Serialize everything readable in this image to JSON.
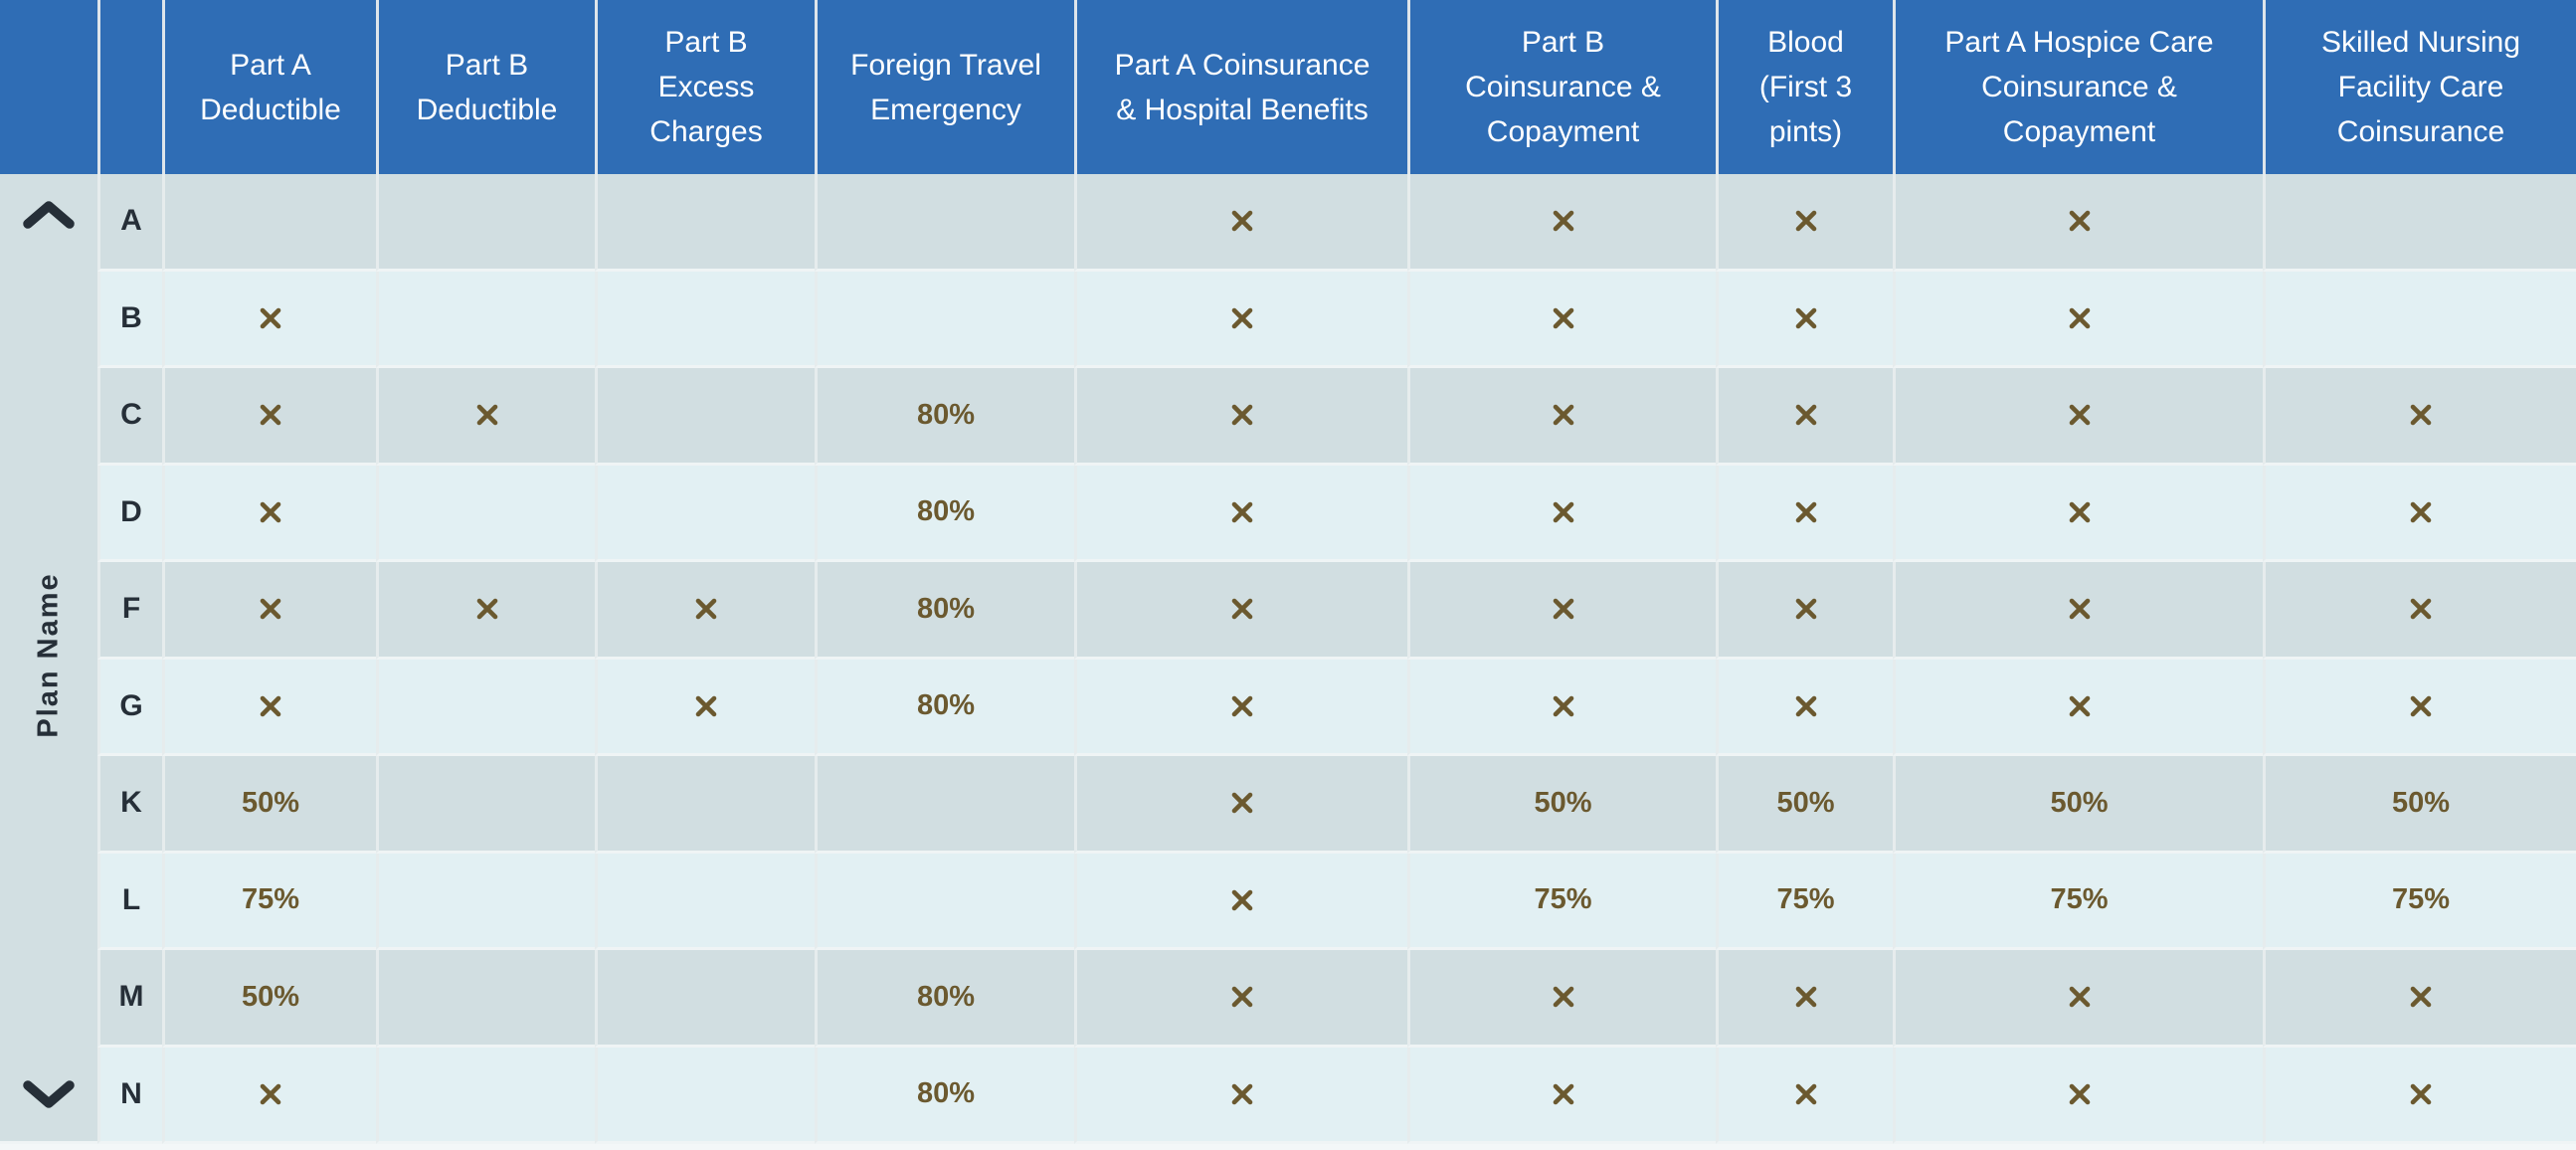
{
  "table": {
    "sidebar": {
      "label": "Plan Name",
      "up_icon": "chevron-up-icon",
      "down_icon": "chevron-down-icon"
    },
    "corner_cells": [
      "",
      ""
    ],
    "columns": [
      "Part A\nDeductible",
      "Part B\nDeductible",
      "Part B\nExcess\nCharges",
      "Foreign Travel\nEmergency",
      "Part A Coinsurance\n& Hospital Benefits",
      "Part B\nCoinsurance &\nCopayment",
      "Blood\n(First 3\npints)",
      "Part A Hospice Care\nCoinsurance &\nCopayment",
      "Skilled Nursing\nFacility Care\nCoinsurance"
    ],
    "mark_icon": "x-mark-icon",
    "rows": [
      {
        "plan": "A",
        "cells": [
          "",
          "",
          "",
          "",
          "x",
          "x",
          "x",
          "x",
          ""
        ]
      },
      {
        "plan": "B",
        "cells": [
          "x",
          "",
          "",
          "",
          "x",
          "x",
          "x",
          "x",
          ""
        ]
      },
      {
        "plan": "C",
        "cells": [
          "x",
          "x",
          "",
          "80%",
          "x",
          "x",
          "x",
          "x",
          "x"
        ]
      },
      {
        "plan": "D",
        "cells": [
          "x",
          "",
          "",
          "80%",
          "x",
          "x",
          "x",
          "x",
          "x"
        ]
      },
      {
        "plan": "F",
        "cells": [
          "x",
          "x",
          "x",
          "80%",
          "x",
          "x",
          "x",
          "x",
          "x"
        ]
      },
      {
        "plan": "G",
        "cells": [
          "x",
          "",
          "x",
          "80%",
          "x",
          "x",
          "x",
          "x",
          "x"
        ]
      },
      {
        "plan": "K",
        "cells": [
          "50%",
          "",
          "",
          "",
          "x",
          "50%",
          "50%",
          "50%",
          "50%"
        ]
      },
      {
        "plan": "L",
        "cells": [
          "75%",
          "",
          "",
          "",
          "x",
          "75%",
          "75%",
          "75%",
          "75%"
        ]
      },
      {
        "plan": "M",
        "cells": [
          "50%",
          "",
          "",
          "80%",
          "x",
          "x",
          "x",
          "x",
          "x"
        ]
      },
      {
        "plan": "N",
        "cells": [
          "x",
          "",
          "",
          "80%",
          "x",
          "x",
          "x",
          "x",
          "x"
        ]
      }
    ],
    "colors": {
      "header_bg": "#2f6db5",
      "row_dark": "#d1dee1",
      "row_light": "#e2f0f3",
      "rail_bg": "#d2dfe2",
      "mark": "#6b592f",
      "ink": "#262f38",
      "row_sep": "#eff4f5",
      "col_sep": "#e6eced",
      "hdr_sep": "#dee5eb",
      "edge": "#f3f7f8"
    }
  }
}
